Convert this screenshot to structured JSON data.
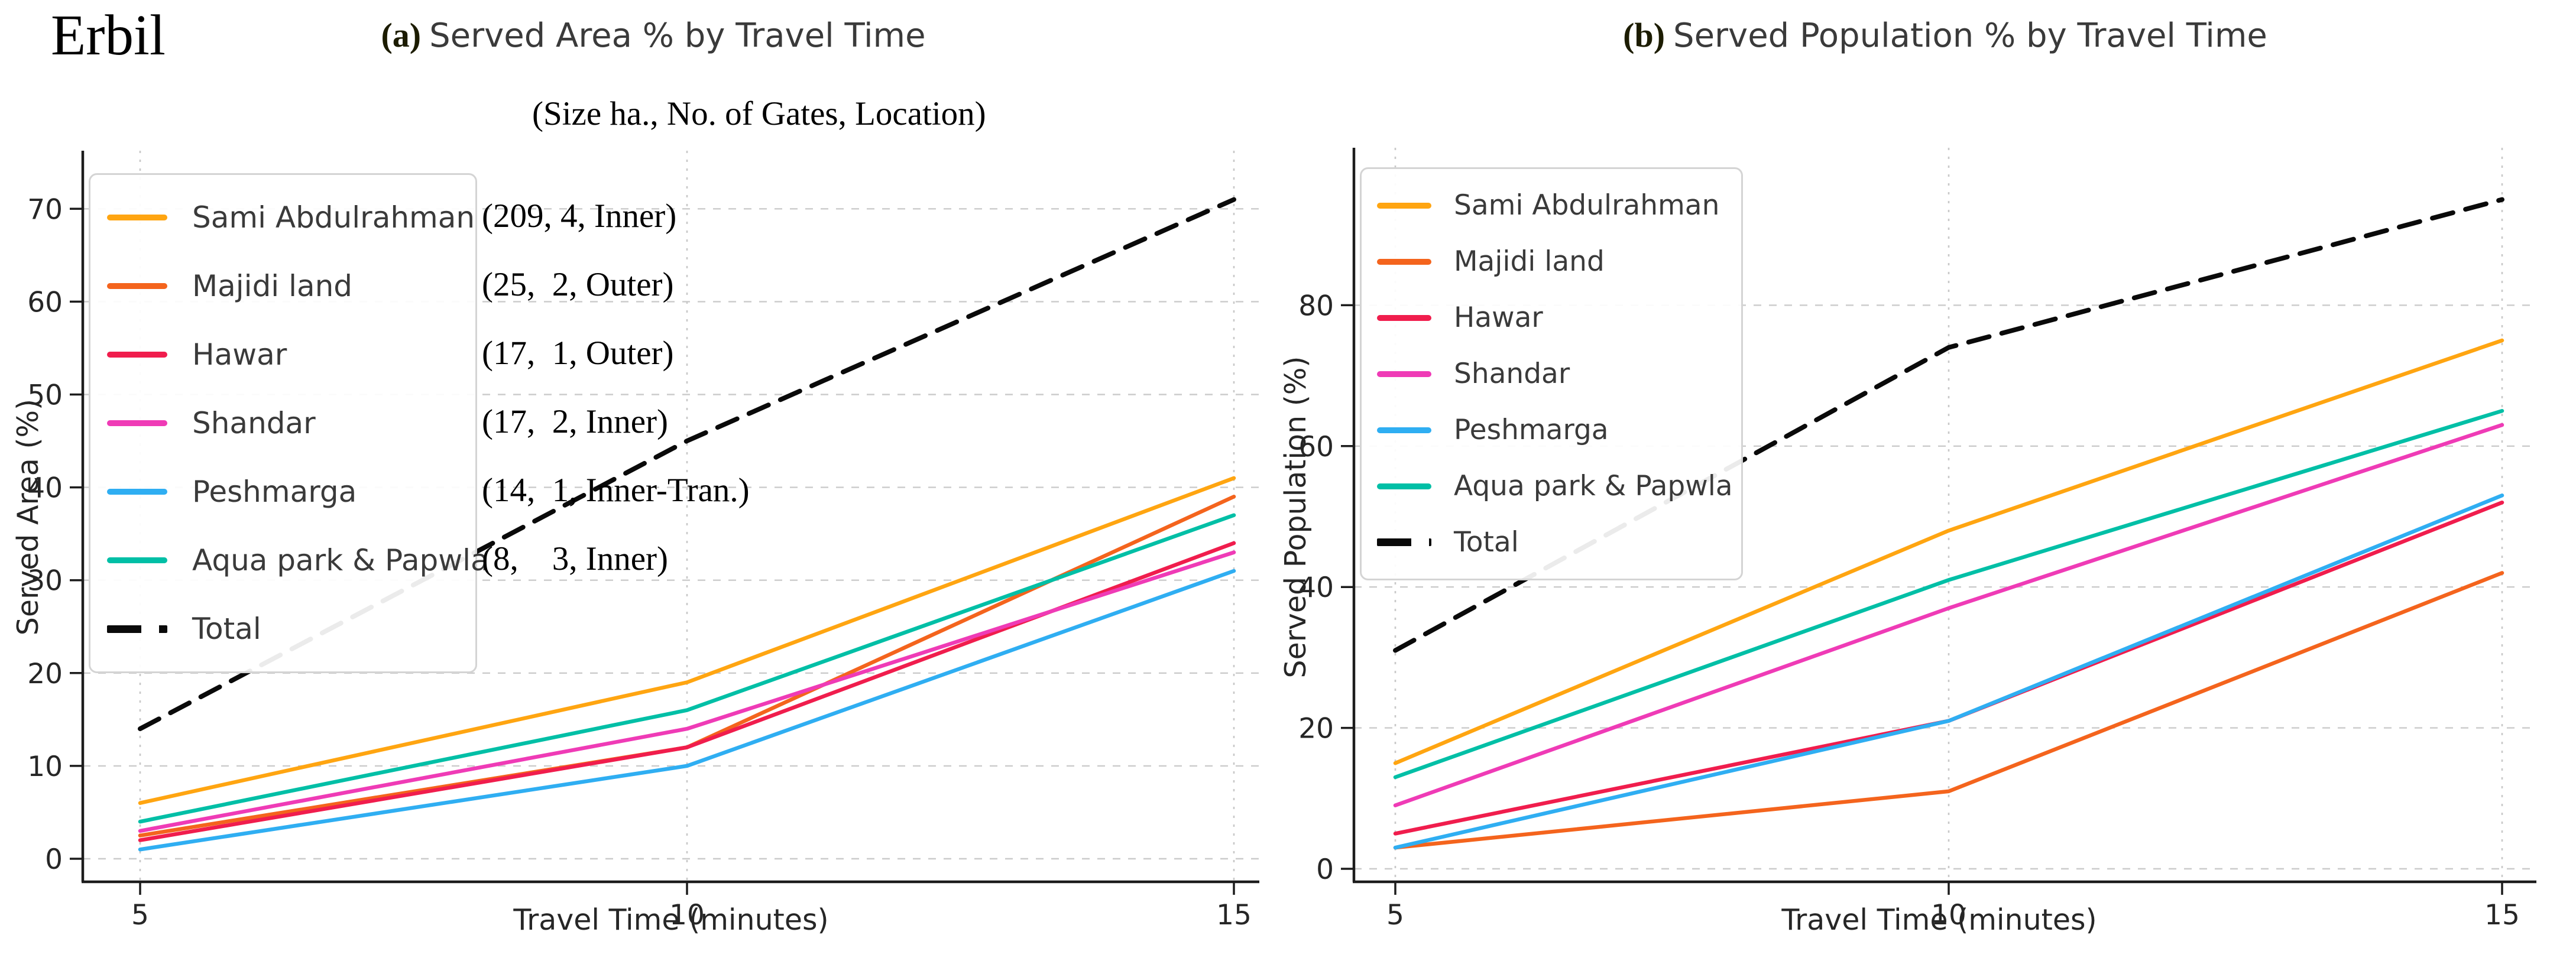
{
  "page": {
    "title": "Erbil",
    "background": "#ffffff"
  },
  "charts": [
    {
      "id": "a",
      "title_prefix": "(a)",
      "title": "Served Area % by Travel Time",
      "xlabel": "Travel Time (minutes)",
      "ylabel": "Served Area (%)",
      "legend_note_header": "(Size ha., No. of Gates, Location)",
      "chart_data": {
        "type": "line",
        "x": [
          5,
          10,
          15
        ],
        "xticks": [
          "5",
          "10",
          "15"
        ],
        "yticks": [
          "0",
          "10",
          "20",
          "30",
          "40",
          "50",
          "60",
          "70"
        ],
        "ylim": [
          -2.5,
          76
        ],
        "xlim": [
          4.5,
          15.3
        ],
        "grid": "on",
        "legend_position": "upper-left",
        "series": [
          {
            "name": "Sami Abdulrahman",
            "annotation": "(209, 4, Inner)",
            "color": "#FFA511",
            "style": "solid",
            "values": [
              6,
              19,
              41
            ]
          },
          {
            "name": "Majidi land",
            "annotation": "(25,  2, Outer)",
            "color": "#F4641D",
            "style": "solid",
            "values": [
              2.5,
              12,
              39
            ]
          },
          {
            "name": "Hawar",
            "annotation": "(17,  1, Outer)",
            "color": "#F01D4D",
            "style": "solid",
            "values": [
              2,
              12,
              34
            ]
          },
          {
            "name": "Shandar",
            "annotation": "(17,  2, Inner)",
            "color": "#EF3BB6",
            "style": "solid",
            "values": [
              3,
              14,
              33
            ]
          },
          {
            "name": "Peshmarga",
            "annotation": "(14,  1, Inner-Tran.)",
            "color": "#2FAEF2",
            "style": "solid",
            "values": [
              1,
              10,
              31
            ]
          },
          {
            "name": "Aqua park & Papwla",
            "annotation": "(8,    3, Inner)",
            "color": "#00BFA6",
            "style": "solid",
            "values": [
              4,
              16,
              37
            ]
          },
          {
            "name": "Total",
            "annotation": "",
            "color": "#0a0a0a",
            "style": "dashed",
            "values": [
              14,
              45,
              71
            ]
          }
        ]
      }
    },
    {
      "id": "b",
      "title_prefix": "(b)",
      "title": "Served Population % by Travel Time",
      "xlabel": "Travel Time (minutes)",
      "ylabel": "Served Population (%)",
      "legend_note_header": "",
      "chart_data": {
        "type": "line",
        "x": [
          5,
          10,
          15
        ],
        "xticks": [
          "5",
          "10",
          "15"
        ],
        "yticks": [
          "0",
          "20",
          "40",
          "60",
          "80"
        ],
        "ylim": [
          -2,
          102
        ],
        "xlim": [
          4.5,
          15.3
        ],
        "grid": "on",
        "legend_position": "upper-left",
        "series": [
          {
            "name": "Sami Abdulrahman",
            "color": "#FFA511",
            "style": "solid",
            "values": [
              15,
              48,
              75
            ]
          },
          {
            "name": "Majidi land",
            "color": "#F4641D",
            "style": "solid",
            "values": [
              3,
              11,
              42
            ]
          },
          {
            "name": "Hawar",
            "color": "#F01D4D",
            "style": "solid",
            "values": [
              5,
              21,
              52
            ]
          },
          {
            "name": "Shandar",
            "color": "#EF3BB6",
            "style": "solid",
            "values": [
              9,
              37,
              63
            ]
          },
          {
            "name": "Peshmarga",
            "color": "#2FAEF2",
            "style": "solid",
            "values": [
              3,
              21,
              53
            ]
          },
          {
            "name": "Aqua park & Papwla",
            "color": "#00BFA6",
            "style": "solid",
            "values": [
              13,
              41,
              65
            ]
          },
          {
            "name": "Total",
            "color": "#0a0a0a",
            "style": "dashed",
            "values": [
              31,
              74,
              95
            ]
          }
        ]
      }
    }
  ]
}
